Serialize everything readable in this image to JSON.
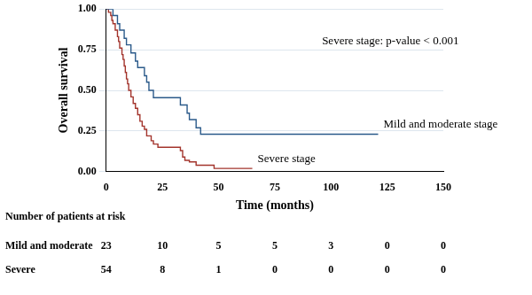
{
  "chart_data": {
    "type": "line",
    "line_style": "step",
    "marker": "none",
    "x_label": "Time (months)",
    "y_label": "Overall survival",
    "annotation": "Severe stage: p-value < 0.001",
    "xlim": [
      0,
      150
    ],
    "xticks": [
      0,
      25,
      50,
      75,
      100,
      125,
      150
    ],
    "ylim": [
      0,
      1
    ],
    "yticks": [
      {
        "value": 0,
        "label": "0.00"
      },
      {
        "value": 0.25,
        "label": "0.25"
      },
      {
        "value": 0.5,
        "label": "0.50"
      },
      {
        "value": 0.75,
        "label": "0.75"
      },
      {
        "value": 1,
        "label": "1.00"
      }
    ],
    "grid": "y",
    "series": [
      {
        "name": "Mild and moderate stage",
        "color": "#2b5a8a",
        "x": [
          0,
          3,
          5,
          6,
          8,
          9,
          11,
          13,
          14,
          17,
          18,
          19,
          21,
          32,
          33,
          36,
          37,
          40,
          42,
          121
        ],
        "values": [
          1,
          0.96,
          0.91,
          0.87,
          0.82,
          0.78,
          0.73,
          0.68,
          0.64,
          0.59,
          0.55,
          0.5,
          0.455,
          0.455,
          0.41,
          0.36,
          0.32,
          0.27,
          0.23,
          0.23
        ]
      },
      {
        "name": "Severe stage",
        "color": "#a3342c",
        "x": [
          0,
          1,
          2,
          2.5,
          3,
          4,
          5,
          5.5,
          6,
          7,
          7.5,
          8,
          8.5,
          9,
          9.5,
          10,
          11,
          12,
          13,
          14,
          15,
          16,
          17,
          18,
          20,
          21,
          23,
          32,
          33,
          34,
          35,
          37,
          40,
          48,
          65
        ],
        "values": [
          1,
          0.98,
          0.96,
          0.93,
          0.91,
          0.87,
          0.83,
          0.8,
          0.76,
          0.72,
          0.69,
          0.65,
          0.61,
          0.57,
          0.54,
          0.5,
          0.46,
          0.42,
          0.39,
          0.35,
          0.31,
          0.28,
          0.26,
          0.22,
          0.19,
          0.17,
          0.15,
          0.15,
          0.13,
          0.09,
          0.07,
          0.06,
          0.04,
          0.02,
          0.02
        ]
      }
    ],
    "risk_table": {
      "title": "Number of patients at risk",
      "rows": [
        {
          "name": "Mild and moderate",
          "values": [
            23,
            10,
            5,
            5,
            3,
            0,
            0
          ]
        },
        {
          "name": "Severe",
          "values": [
            54,
            8,
            1,
            0,
            0,
            0,
            0
          ]
        }
      ]
    }
  }
}
